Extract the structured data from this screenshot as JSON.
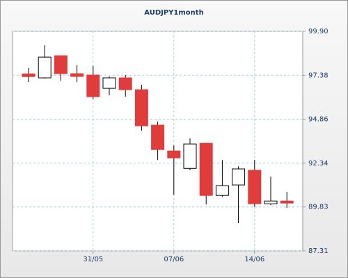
{
  "chart_data": {
    "type": "candlestick",
    "title": "AUDJPY1month",
    "categories": [
      null,
      null,
      null,
      null,
      "31/05",
      null,
      null,
      null,
      null,
      "07/06",
      null,
      null,
      null,
      null,
      "14/06",
      null,
      null
    ],
    "series": [
      {
        "up_color": "#ffffff",
        "down_color": "#e03c3c",
        "open": [
          97.46,
          97.23,
          98.5,
          97.47,
          97.39,
          96.63,
          97.23,
          96.55,
          94.52,
          93.04,
          92.04,
          93.48,
          90.49,
          91.09,
          91.93,
          90.01,
          90.17
        ],
        "high": [
          97.79,
          99.1,
          98.5,
          97.95,
          97.91,
          97.31,
          97.39,
          96.83,
          94.72,
          93.36,
          93.76,
          93.48,
          92.52,
          92.16,
          92.52,
          91.57,
          90.69
        ],
        "low": [
          96.99,
          97.19,
          97.07,
          96.99,
          96.03,
          96.23,
          96.15,
          94.2,
          92.52,
          90.53,
          91.93,
          89.97,
          90.41,
          88.9,
          89.85,
          89.93,
          89.77
        ],
        "close": [
          97.3,
          98.42,
          97.47,
          97.31,
          96.15,
          97.23,
          96.55,
          94.48,
          93.12,
          92.64,
          93.44,
          90.49,
          91.05,
          92.01,
          90.01,
          90.17,
          90.05
        ]
      }
    ],
    "ylim": [
      87.31,
      99.9
    ],
    "yticks": [
      87.31,
      89.83,
      92.34,
      94.86,
      97.38,
      {
        "value": 99.9,
        "label": "99.90"
      }
    ],
    "grid": true
  }
}
